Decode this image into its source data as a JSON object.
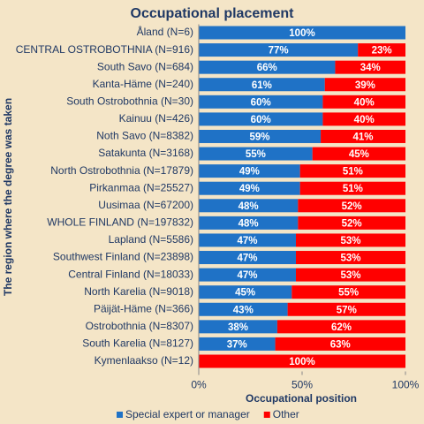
{
  "chart_data": {
    "type": "stacked-bar-horizontal",
    "title": "Occupational placement",
    "x_label": "Occupational position",
    "y_label": "The region where the degree was taken",
    "categories": [
      "Åland (N=6)",
      "CENTRAL OSTROBOTHNIA (N=916)",
      "South Savo (N=684)",
      "Kanta-Häme (N=240)",
      "South Ostrobothnia (N=30)",
      "Kainuu (N=426)",
      "Noth Savo (N=8382)",
      "Satakunta (N=3168)",
      "North Ostrobothnia (N=17879)",
      "Pirkanmaa (N=25527)",
      "Uusimaa (N=67200)",
      "WHOLE FINLAND (N=197832)",
      "Lapland (N=5586)",
      "Southwest Finland (N=23898)",
      "Central Finland (N=18033)",
      "North Karelia (N=9018)",
      "Päijät-Häme (N=366)",
      "Ostrobothnia (N=8307)",
      "South Karelia (N=8127)",
      "Kymenlaakso (N=12)"
    ],
    "series": [
      {
        "name": "Special expert or manager",
        "color": "#1f72c6",
        "values": [
          100,
          77,
          66,
          61,
          60,
          60,
          59,
          55,
          49,
          49,
          48,
          48,
          47,
          47,
          47,
          45,
          43,
          38,
          37,
          0
        ],
        "value_labels": [
          "100%",
          "77%",
          "66%",
          "61%",
          "60%",
          "60%",
          "59%",
          "55%",
          "49%",
          "49%",
          "48%",
          "48%",
          "47%",
          "47%",
          "47%",
          "45%",
          "43%",
          "38%",
          "37%",
          null
        ]
      },
      {
        "name": "Other",
        "color": "#ff0000",
        "values": [
          0,
          23,
          34,
          39,
          40,
          40,
          41,
          45,
          51,
          51,
          52,
          52,
          53,
          53,
          53,
          55,
          57,
          62,
          63,
          100
        ],
        "value_labels": [
          null,
          "23%",
          "34%",
          "39%",
          "40%",
          "40%",
          "41%",
          "45%",
          "51%",
          "51%",
          "52%",
          "52%",
          "53%",
          "53%",
          "53%",
          "55%",
          "57%",
          "62%",
          "63%",
          "100%"
        ]
      }
    ],
    "xlim": [
      0,
      100
    ],
    "xticks": [
      {
        "value": 0,
        "label": "0%"
      },
      {
        "value": 50,
        "label": "50%"
      },
      {
        "value": 100,
        "label": "100%"
      }
    ],
    "grid": false,
    "legend": "bottom"
  }
}
